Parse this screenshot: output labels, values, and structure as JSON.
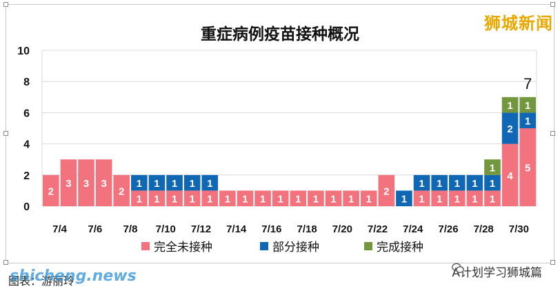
{
  "watermark": "狮城新闻",
  "chart_data": {
    "type": "bar",
    "stacked": true,
    "title": "重症病例疫苗接种概况",
    "ylim": [
      0,
      10
    ],
    "yticks": [
      0,
      2,
      4,
      6,
      8,
      10
    ],
    "xtick_labels": [
      "7/4",
      "7/6",
      "7/8",
      "7/10",
      "7/12",
      "7/14",
      "7/16",
      "7/18",
      "7/20",
      "7/22",
      "7/24",
      "7/26",
      "7/28",
      "7/30"
    ],
    "categories": [
      "7/4",
      "7/5",
      "7/6",
      "7/7",
      "7/8",
      "7/9",
      "7/10",
      "7/11",
      "7/12",
      "7/13",
      "7/14",
      "7/15",
      "7/16",
      "7/17",
      "7/18",
      "7/19",
      "7/20",
      "7/21",
      "7/22",
      "7/23",
      "7/24",
      "7/25",
      "7/26",
      "7/27",
      "7/28",
      "7/29",
      "7/30",
      "7/31"
    ],
    "series": [
      {
        "name": "完全未接种",
        "color": "#f2727e",
        "values": [
          2,
          3,
          3,
          3,
          2,
          1,
          1,
          1,
          1,
          1,
          1,
          1,
          1,
          1,
          1,
          1,
          1,
          1,
          1,
          2,
          0,
          1,
          1,
          1,
          1,
          1,
          4,
          5
        ]
      },
      {
        "name": "部分接种",
        "color": "#1068b4",
        "values": [
          0,
          0,
          0,
          0,
          0,
          1,
          1,
          1,
          1,
          1,
          0,
          0,
          0,
          0,
          0,
          0,
          0,
          0,
          0,
          0,
          1,
          1,
          1,
          1,
          1,
          1,
          2,
          1
        ]
      },
      {
        "name": "完成接种",
        "color": "#72973e",
        "values": [
          0,
          0,
          0,
          0,
          0,
          0,
          0,
          0,
          0,
          0,
          0,
          0,
          0,
          0,
          0,
          0,
          0,
          0,
          0,
          0,
          0,
          0,
          0,
          0,
          0,
          1,
          1,
          1
        ]
      }
    ],
    "annotations": [
      {
        "category": "7/31",
        "text": "7"
      }
    ],
    "grid": true,
    "legend": "bottom"
  },
  "footer": {
    "source": "图表：游丽玲",
    "site": "shicheng.news",
    "account": "A计划学习狮城篇"
  }
}
